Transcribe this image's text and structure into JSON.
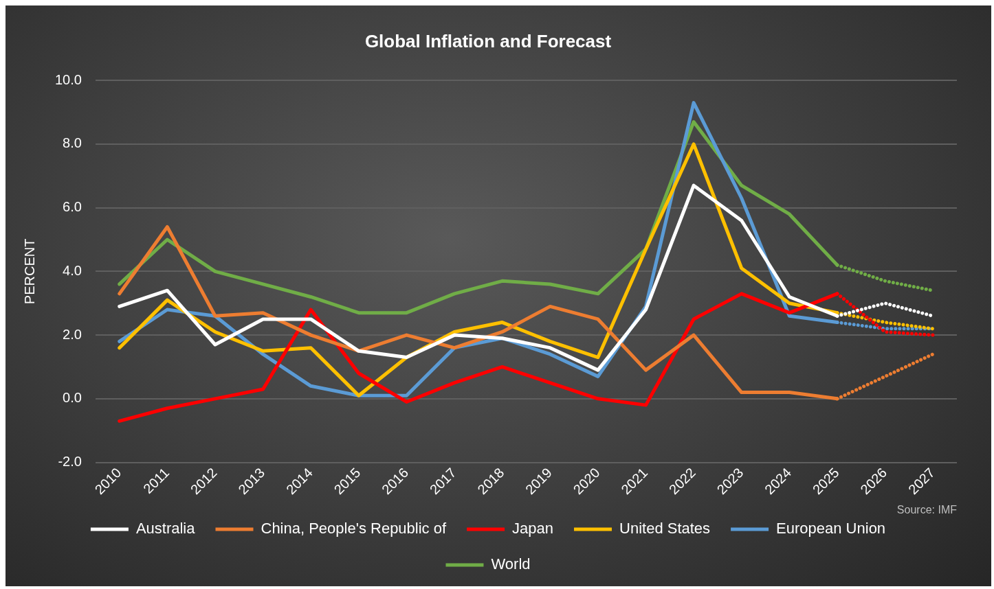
{
  "chart_data": {
    "type": "line",
    "title": "Global Inflation and Forecast",
    "ylabel": "PERCENT",
    "categories": [
      "2010",
      "2011",
      "2012",
      "2013",
      "2014",
      "2015",
      "2016",
      "2017",
      "2018",
      "2019",
      "2020",
      "2021",
      "2022",
      "2023",
      "2024",
      "2025",
      "2026",
      "2027"
    ],
    "series": [
      {
        "name": "Australia",
        "color": "#ffffff",
        "values": [
          2.9,
          3.4,
          1.7,
          2.5,
          2.5,
          1.5,
          1.3,
          2.0,
          1.9,
          1.6,
          0.9,
          2.8,
          6.7,
          5.6,
          3.2,
          2.6,
          null,
          null
        ]
      },
      {
        "name": "China, People's Republic of",
        "color": "#ed7d31",
        "values": [
          3.3,
          5.4,
          2.6,
          2.7,
          2.0,
          1.5,
          2.0,
          1.6,
          2.1,
          2.9,
          2.5,
          0.9,
          2.0,
          0.2,
          0.2,
          0.0,
          null,
          null
        ]
      },
      {
        "name": "Japan",
        "color": "#ff0000",
        "values": [
          -0.7,
          -0.3,
          0.0,
          0.3,
          2.8,
          0.8,
          -0.1,
          0.5,
          1.0,
          0.5,
          0.0,
          -0.2,
          2.5,
          3.3,
          2.7,
          3.3,
          null,
          null
        ]
      },
      {
        "name": "United States",
        "color": "#ffc000",
        "values": [
          1.6,
          3.1,
          2.1,
          1.5,
          1.6,
          0.1,
          1.3,
          2.1,
          2.4,
          1.8,
          1.3,
          4.7,
          8.0,
          4.1,
          3.0,
          2.7,
          null,
          null
        ]
      },
      {
        "name": "European Union",
        "color": "#5b9bd5",
        "values": [
          1.8,
          2.8,
          2.6,
          1.4,
          0.4,
          0.1,
          0.1,
          1.6,
          1.9,
          1.4,
          0.7,
          2.9,
          9.3,
          6.3,
          2.6,
          2.4,
          null,
          null
        ]
      },
      {
        "name": "World",
        "color": "#70ad47",
        "values": [
          3.6,
          5.0,
          4.0,
          3.6,
          3.2,
          2.7,
          2.7,
          3.3,
          3.7,
          3.6,
          3.3,
          4.7,
          8.7,
          6.7,
          5.8,
          4.2,
          null,
          null
        ]
      },
      {
        "color": "#ffffff",
        "line_style": "dotted",
        "values": [
          null,
          null,
          null,
          null,
          null,
          null,
          null,
          null,
          null,
          null,
          null,
          null,
          null,
          null,
          null,
          2.6,
          3.0,
          2.6
        ]
      },
      {
        "color": "#ed7d31",
        "line_style": "dotted",
        "values": [
          null,
          null,
          null,
          null,
          null,
          null,
          null,
          null,
          null,
          null,
          null,
          null,
          null,
          null,
          null,
          0.0,
          0.7,
          1.4
        ]
      },
      {
        "color": "#ff0000",
        "line_style": "dotted",
        "values": [
          null,
          null,
          null,
          null,
          null,
          null,
          null,
          null,
          null,
          null,
          null,
          null,
          null,
          null,
          null,
          3.3,
          2.1,
          2.0
        ]
      },
      {
        "color": "#ffc000",
        "line_style": "dotted",
        "values": [
          null,
          null,
          null,
          null,
          null,
          null,
          null,
          null,
          null,
          null,
          null,
          null,
          null,
          null,
          null,
          2.7,
          2.4,
          2.2
        ]
      },
      {
        "color": "#5b9bd5",
        "line_style": "dotted",
        "values": [
          null,
          null,
          null,
          null,
          null,
          null,
          null,
          null,
          null,
          null,
          null,
          null,
          null,
          null,
          null,
          2.4,
          2.2,
          2.2
        ]
      },
      {
        "color": "#70ad47",
        "line_style": "dotted",
        "values": [
          null,
          null,
          null,
          null,
          null,
          null,
          null,
          null,
          null,
          null,
          null,
          null,
          null,
          null,
          null,
          4.2,
          3.7,
          3.4
        ]
      }
    ],
    "ylim": [
      -2,
      10
    ],
    "yticks": [
      {
        "value": -2,
        "label": "-2.0"
      },
      {
        "value": 0,
        "label": "0.0"
      },
      {
        "value": 2,
        "label": "2.0"
      },
      {
        "value": 4,
        "label": "4.0"
      },
      {
        "value": 6,
        "label": "6.0"
      },
      {
        "value": 8,
        "label": "8.0"
      },
      {
        "value": 10,
        "label": "10.0"
      }
    ],
    "grid": "y",
    "legend": "bottom",
    "marker": "none",
    "line_style": "solid",
    "annotations": [
      "Source: IMF"
    ]
  }
}
